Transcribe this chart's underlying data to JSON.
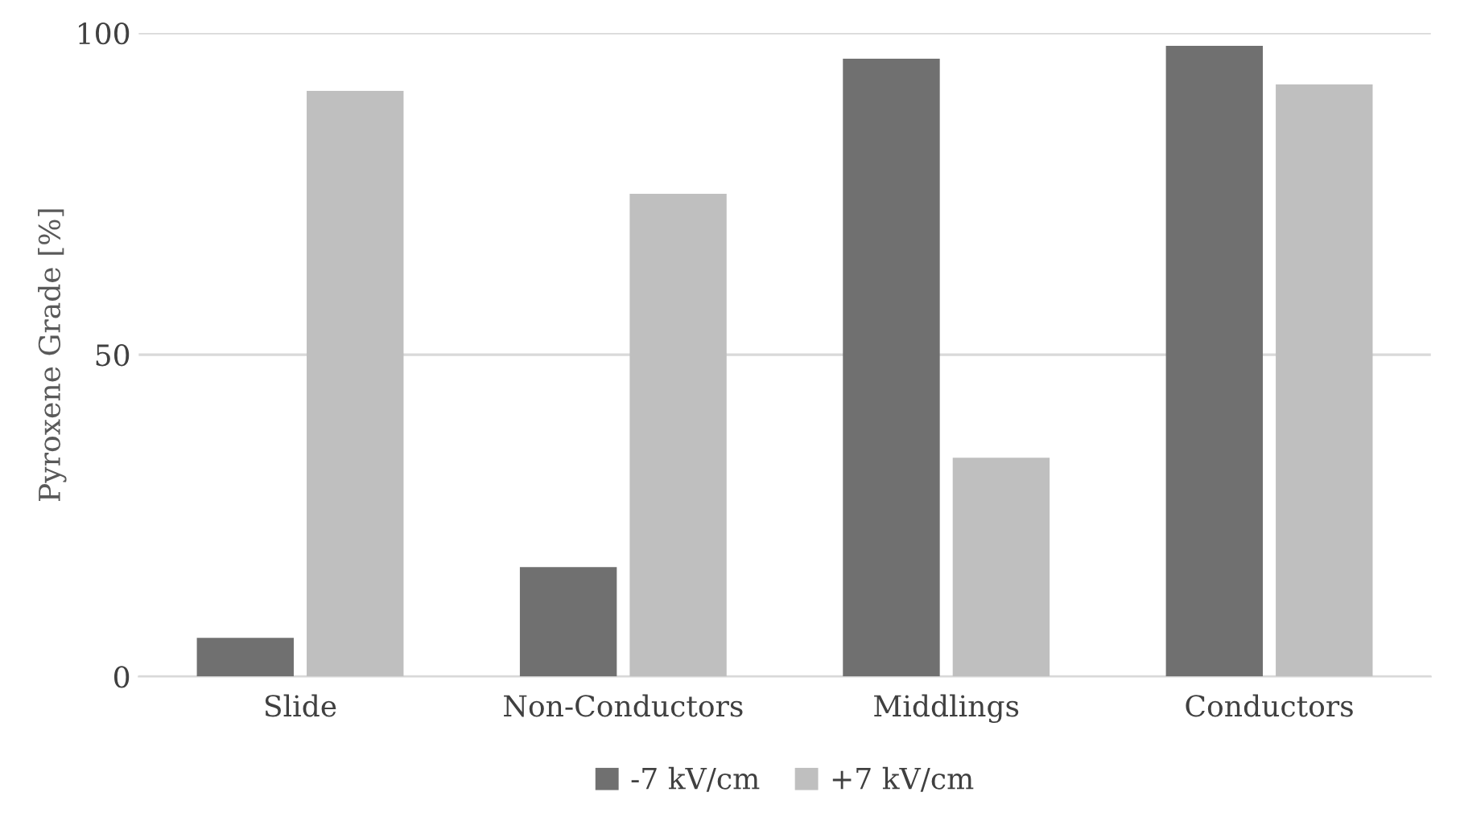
{
  "chart_data": {
    "type": "bar",
    "ylabel": "Pyroxene Grade [%]",
    "categories": [
      "Slide",
      "Non-Conductors",
      "Middlings",
      "Conductors"
    ],
    "series": [
      {
        "name": "-7 kV/cm",
        "color": "#707070",
        "values": [
          6,
          17,
          96,
          98
        ]
      },
      {
        "name": "+7 kV/cm",
        "color": "#bfbfbf",
        "values": [
          91,
          75,
          34,
          92
        ]
      }
    ],
    "ylim": [
      0,
      100
    ],
    "yticks": [
      0,
      50,
      100
    ],
    "grid": "y",
    "legend": "bottom"
  }
}
